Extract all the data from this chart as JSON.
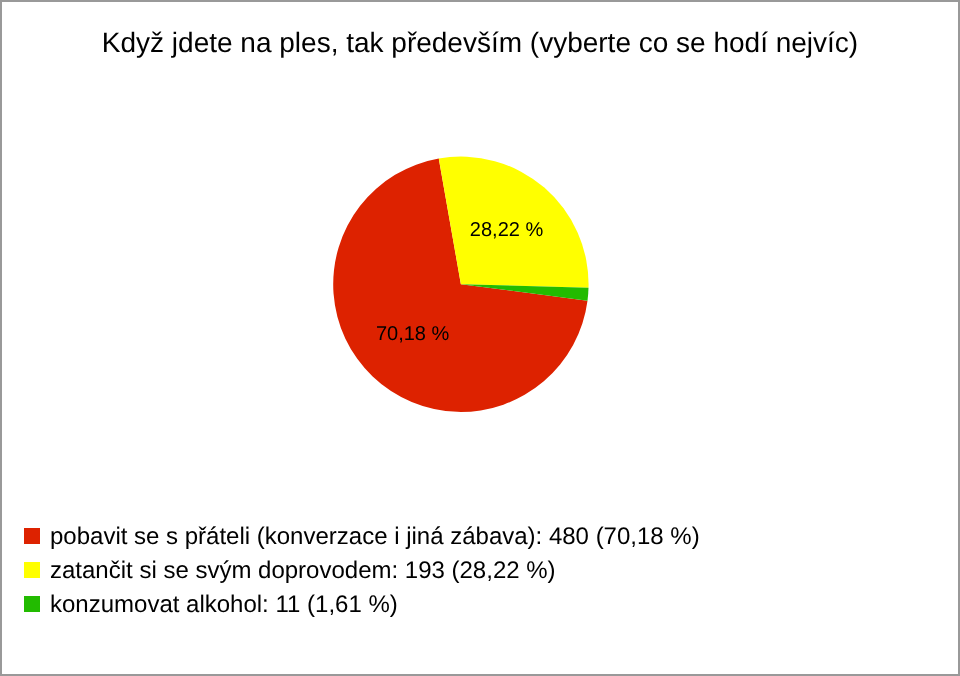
{
  "chart_data": {
    "type": "pie",
    "title": "Když jdete na ples, tak především (vyberte co se hodí nejvíc)",
    "categories": [
      "pobavit se s přáteli (konverzace i jiná zábava): 480 (70,18 %)",
      "zatančit si se svým doprovodem: 193 (28,22 %)",
      "konzumovat alkohol: 11 (1,61 %)"
    ],
    "values": [
      70.18,
      28.22,
      1.61
    ],
    "colors": [
      "#dd2200",
      "#ffff00",
      "#22bb00"
    ],
    "value_labels": [
      "70,18 %",
      "28,22 %",
      null
    ],
    "legend": "bottom left"
  }
}
